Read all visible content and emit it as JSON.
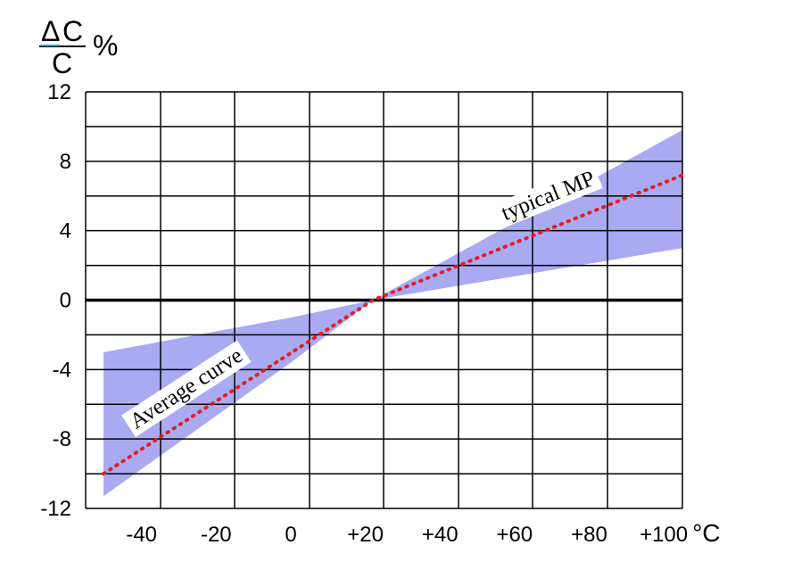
{
  "chart_data": {
    "type": "area",
    "ylabel": {
      "numerator_symbol": "Δ",
      "numerator_var": "C",
      "denominator": "C",
      "unit": "%"
    },
    "x_unit": "°C",
    "xlim": [
      -55,
      105
    ],
    "ylim": [
      -12,
      12
    ],
    "x_ticks": [
      -40,
      -20,
      0,
      20,
      40,
      60,
      80,
      100
    ],
    "x_tick_labels": [
      "-40",
      "-20",
      "0",
      "+20",
      "+40",
      "+60",
      "+80",
      "+100"
    ],
    "y_ticks": [
      12,
      8,
      4,
      0,
      -4,
      -8,
      -12
    ],
    "y_tick_labels": [
      "12",
      "8",
      "4",
      "0",
      "-4",
      "-8",
      "-12"
    ],
    "grid": true,
    "series": [
      {
        "kind": "band",
        "upper": [
          [
            -55,
            -3.0
          ],
          [
            0,
            -1.0
          ],
          [
            22,
            0.0
          ],
          [
            105,
            9.8
          ]
        ],
        "lower": [
          [
            -55,
            -11.3
          ],
          [
            0,
            -3.6
          ],
          [
            22,
            0.0
          ],
          [
            105,
            3.0
          ]
        ],
        "color": "#aaaaf2"
      },
      {
        "kind": "line",
        "style": "dotted",
        "points": [
          [
            -55,
            -10.0
          ],
          [
            22,
            0.0
          ],
          [
            105,
            7.2
          ]
        ],
        "color": "#e02020"
      }
    ],
    "annotations": [
      {
        "text": "Average curve",
        "x": -28,
        "y": -5.1,
        "angle": -33
      },
      {
        "text": "typical MP",
        "x": 69,
        "y": 6.0,
        "angle": -22
      }
    ],
    "colors": {
      "band": "#aaaaf2",
      "line": "#e02020",
      "delta": "#00aacc",
      "grid": "#000000"
    }
  }
}
